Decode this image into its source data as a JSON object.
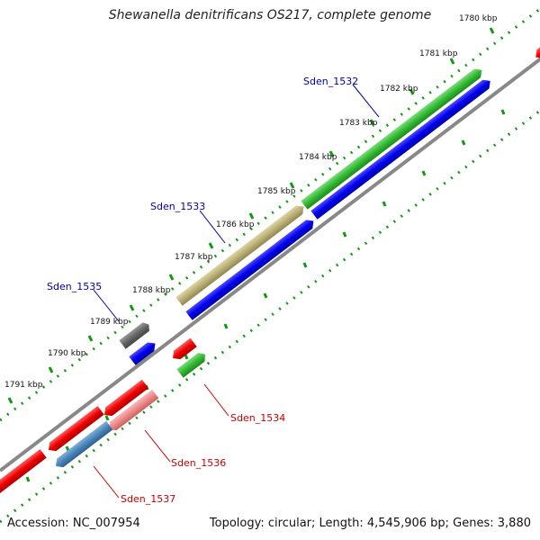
{
  "title": "Shewanella denitrificans OS217, complete genome",
  "footer": {
    "accession": "Accession: NC_007954",
    "stats": "Topology: circular; Length: 4,545,906 bp; Genes: 3,880"
  },
  "ticks": [
    "1780 kbp",
    "1781 kbp",
    "1782 kbp",
    "1783 kbp",
    "1784 kbp",
    "1785 kbp",
    "1786 kbp",
    "1787 kbp",
    "1788 kbp",
    "1789 kbp",
    "1790 kbp",
    "1791 kbp"
  ],
  "gene_labels": [
    {
      "name": "Sden_1532",
      "color": "#0000aa"
    },
    {
      "name": "Sden_1533",
      "color": "#0000aa"
    },
    {
      "name": "Sden_1535",
      "color": "#0000aa"
    },
    {
      "name": "Sden_1534",
      "color": "#cc0000"
    },
    {
      "name": "Sden_1536",
      "color": "#cc0000"
    },
    {
      "name": "Sden_1537",
      "color": "#cc0000"
    }
  ],
  "colors": {
    "forward_cds": "#33bb33",
    "forward_orf": "#bbb077",
    "forward_gray": "#666666",
    "blue": "#0000ee",
    "reverse_cds": "#ee0000",
    "reverse_pink": "#ee8888",
    "reverse_steel": "#4a85b8",
    "backbone": "#888888",
    "dots": "#119911"
  }
}
